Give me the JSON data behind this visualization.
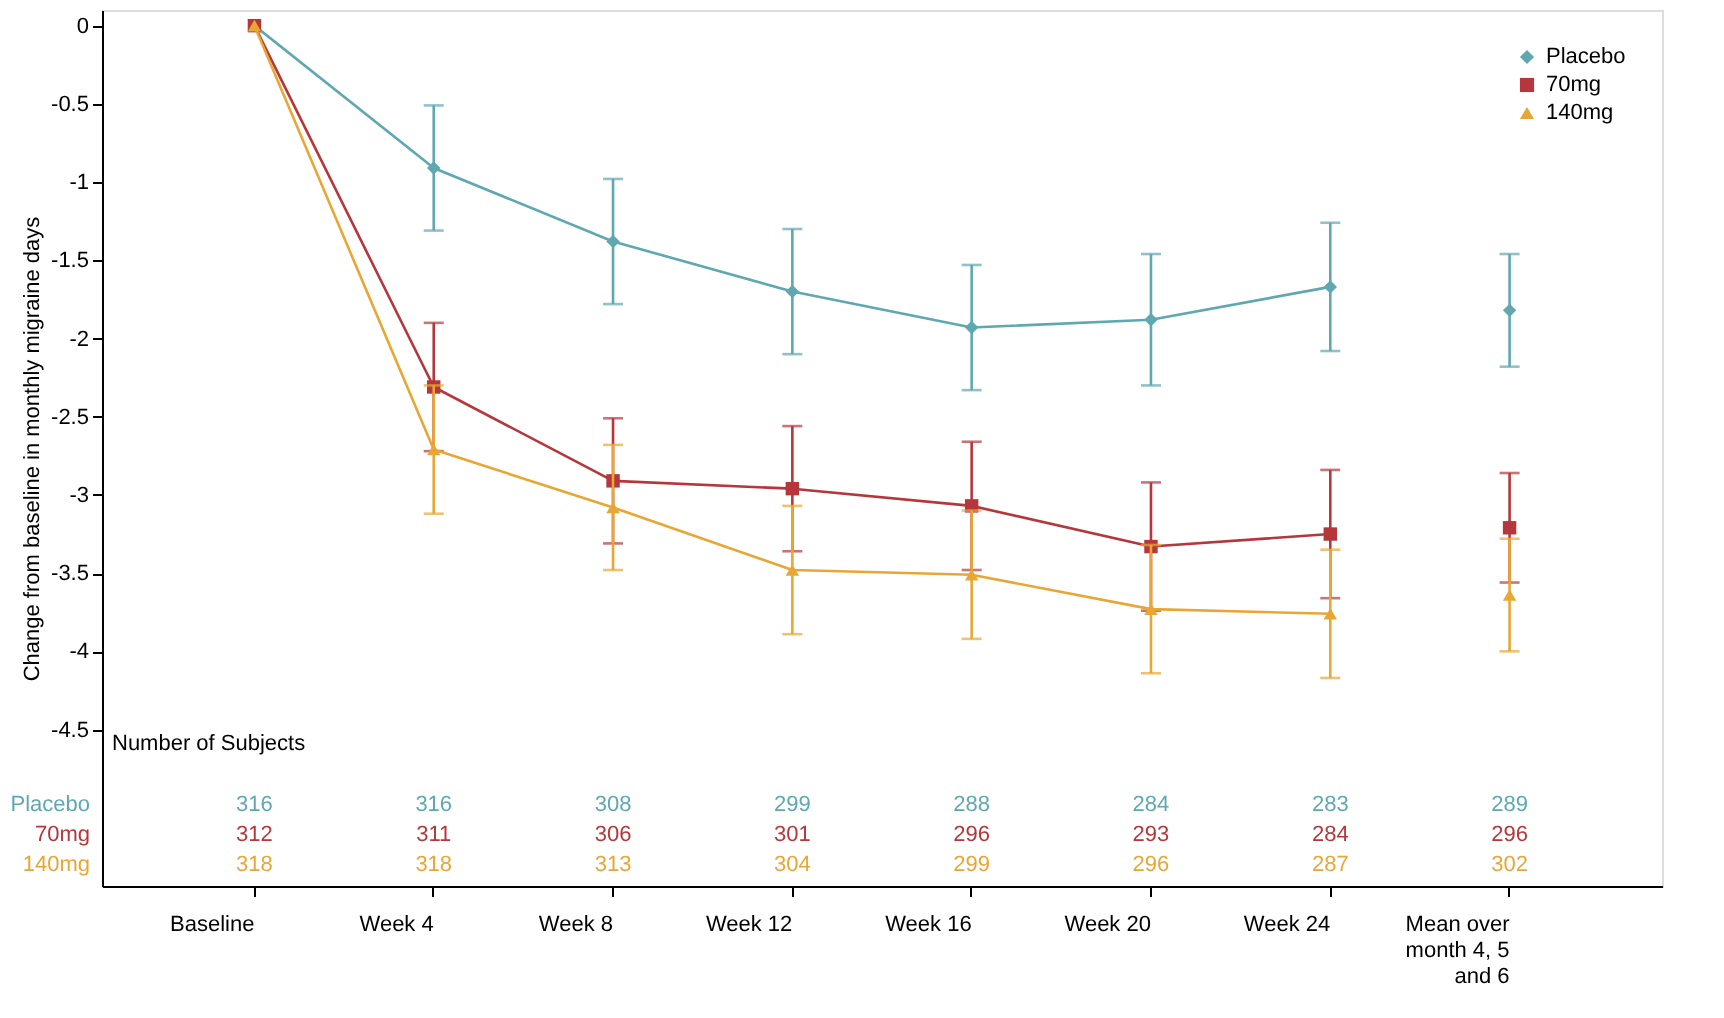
{
  "chart_data": {
    "type": "line",
    "ylabel": "Change from baseline in monthly migraine days",
    "categories": [
      "Baseline",
      "Week 4",
      "Week 8",
      "Week 12",
      "Week 16",
      "Week 20",
      "Week 24",
      "Mean over month 4, 5 and 6"
    ],
    "ylim": [
      -5.5,
      0.1
    ],
    "yticks": [
      0,
      -0.5,
      -1,
      -1.5,
      -2,
      -2.5,
      -3,
      -3.5,
      -4,
      -4.5
    ],
    "grid": false,
    "legend": "top right",
    "line_style": "solid",
    "series": [
      {
        "name": "Placebo",
        "color": "#5fa8b0",
        "marker": "diamond",
        "values": [
          0,
          -0.91,
          -1.38,
          -1.7,
          -1.93,
          -1.88,
          -1.67,
          null
        ],
        "errors": [
          null,
          0.4,
          0.4,
          0.4,
          0.4,
          0.42,
          0.41,
          null
        ]
      },
      {
        "name": "70mg",
        "color": "#b5373b",
        "marker": "square",
        "values": [
          0,
          -2.31,
          -2.91,
          -2.96,
          -3.07,
          -3.33,
          -3.25,
          null
        ],
        "errors": [
          null,
          0.41,
          0.4,
          0.4,
          0.41,
          0.41,
          0.41,
          null
        ]
      },
      {
        "name": "140mg",
        "color": "#e8a735",
        "marker": "triangle",
        "values": [
          0,
          -2.71,
          -3.08,
          -3.48,
          -3.51,
          -3.73,
          -3.76,
          null
        ],
        "errors": [
          null,
          0.41,
          0.4,
          0.41,
          0.41,
          0.41,
          0.41,
          null
        ]
      },
      {
        "type": "scatter",
        "color": "#5fa8b0",
        "marker": "diamond",
        "values": [
          null,
          null,
          null,
          null,
          null,
          null,
          null,
          -1.82
        ],
        "errors": [
          null,
          null,
          null,
          null,
          null,
          null,
          null,
          0.36
        ]
      },
      {
        "type": "scatter",
        "color": "#b5373b",
        "marker": "square",
        "values": [
          null,
          null,
          null,
          null,
          null,
          null,
          null,
          -3.21
        ],
        "errors": [
          null,
          null,
          null,
          null,
          null,
          null,
          null,
          0.35
        ]
      },
      {
        "type": "scatter",
        "color": "#e8a735",
        "marker": "triangle",
        "values": [
          null,
          null,
          null,
          null,
          null,
          null,
          null,
          -3.64
        ],
        "errors": [
          null,
          null,
          null,
          null,
          null,
          null,
          null,
          0.36
        ]
      }
    ],
    "annotations": [
      "Number of Subjects",
      "316",
      "316",
      "308",
      "299",
      "288",
      "284",
      "283",
      "289",
      "312",
      "311",
      "306",
      "301",
      "296",
      "293",
      "284",
      "296",
      "318",
      "318",
      "313",
      "304",
      "299",
      "296",
      "287",
      "302"
    ]
  }
}
